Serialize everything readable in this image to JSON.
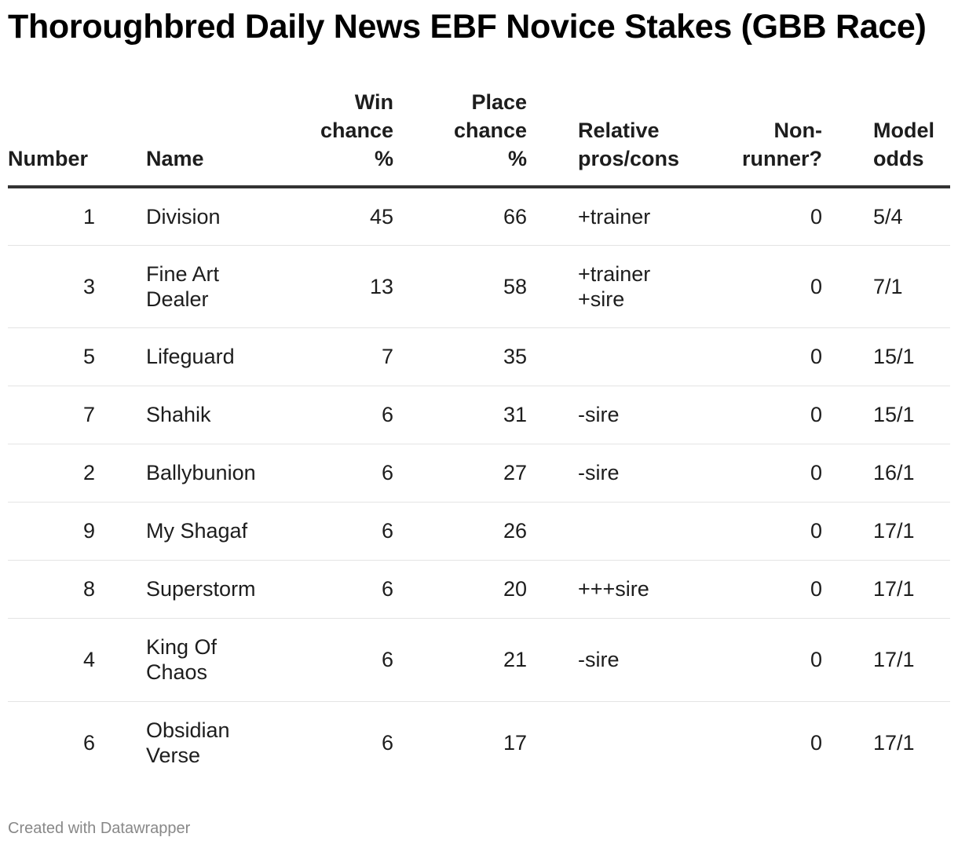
{
  "title": "Thoroughbred Daily News EBF Novice Stakes (GBB Race)",
  "footer": "Created with Datawrapper",
  "chart_data": {
    "type": "table",
    "title": "Thoroughbred Daily News EBF Novice Stakes (GBB Race)",
    "columns": [
      {
        "key": "number",
        "label": "Number",
        "align": "right"
      },
      {
        "key": "name",
        "label": "Name",
        "align": "left"
      },
      {
        "key": "win",
        "label": "Win chance %",
        "align": "right"
      },
      {
        "key": "place",
        "label": "Place chance %",
        "align": "right"
      },
      {
        "key": "relative",
        "label": "Relative pros/cons",
        "align": "left"
      },
      {
        "key": "nonrunner",
        "label": "Non-runner?",
        "align": "right"
      },
      {
        "key": "odds",
        "label": "Model odds",
        "align": "left"
      }
    ],
    "rows": [
      {
        "number": "1",
        "name": "Division",
        "win": "45",
        "place": "66",
        "relative": "+trainer",
        "nonrunner": "0",
        "odds": "5/4"
      },
      {
        "number": "3",
        "name": "Fine Art Dealer",
        "win": "13",
        "place": "58",
        "relative": "+trainer +sire",
        "nonrunner": "0",
        "odds": "7/1"
      },
      {
        "number": "5",
        "name": "Lifeguard",
        "win": "7",
        "place": "35",
        "relative": "",
        "nonrunner": "0",
        "odds": "15/1"
      },
      {
        "number": "7",
        "name": "Shahik",
        "win": "6",
        "place": "31",
        "relative": "-sire",
        "nonrunner": "0",
        "odds": "15/1"
      },
      {
        "number": "2",
        "name": "Ballybunion",
        "win": "6",
        "place": "27",
        "relative": "-sire",
        "nonrunner": "0",
        "odds": "16/1"
      },
      {
        "number": "9",
        "name": "My Shagaf",
        "win": "6",
        "place": "26",
        "relative": "",
        "nonrunner": "0",
        "odds": "17/1"
      },
      {
        "number": "8",
        "name": "Superstorm",
        "win": "6",
        "place": "20",
        "relative": "+++sire",
        "nonrunner": "0",
        "odds": "17/1"
      },
      {
        "number": "4",
        "name": "King Of Chaos",
        "win": "6",
        "place": "21",
        "relative": "-sire",
        "nonrunner": "0",
        "odds": "17/1"
      },
      {
        "number": "6",
        "name": "Obsidian Verse",
        "win": "6",
        "place": "17",
        "relative": "",
        "nonrunner": "0",
        "odds": "17/1"
      }
    ]
  }
}
